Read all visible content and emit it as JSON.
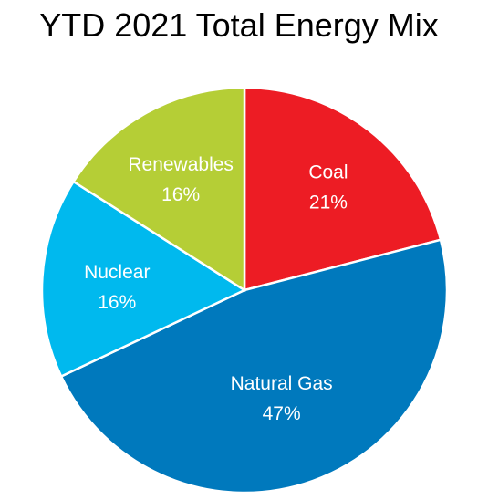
{
  "chart_data": {
    "type": "pie",
    "title": "YTD 2021 Total Energy Mix",
    "categories": [
      "Coal",
      "Natural Gas",
      "Nuclear",
      "Renewables"
    ],
    "values": [
      21,
      47,
      16,
      16
    ],
    "value_labels": [
      "21%",
      "47%",
      "16%",
      "16%"
    ],
    "colors": [
      "#ED1C24",
      "#0079BD",
      "#00B9EE",
      "#B5CE36"
    ],
    "start_angle": "12 o'clock",
    "direction": "clockwise",
    "legend": "none, labels inside slices"
  }
}
